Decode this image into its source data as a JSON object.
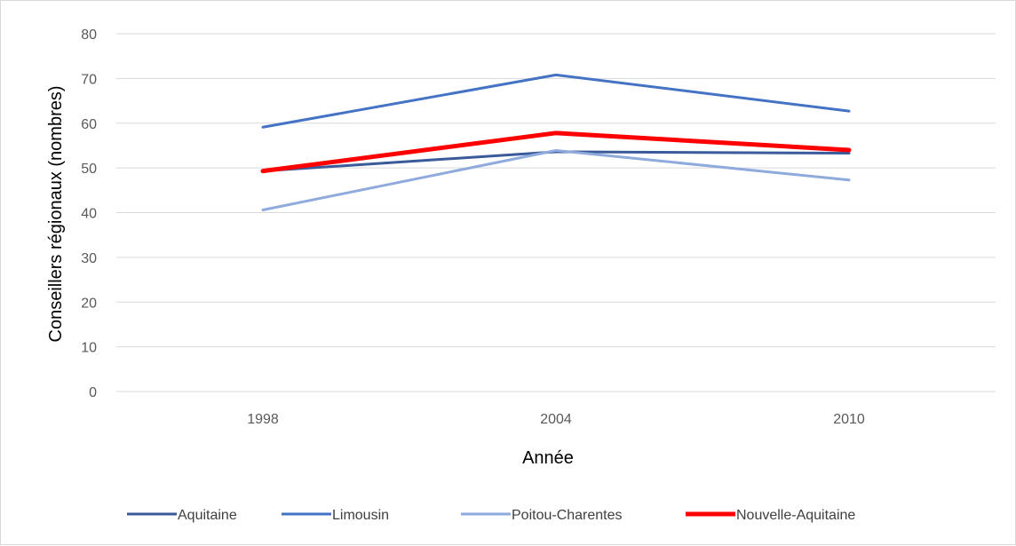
{
  "chart_data": {
    "type": "line",
    "title": "",
    "xlabel": "Année",
    "ylabel": "Conseillers régionaux (nombres)",
    "categories": [
      "1998",
      "2004",
      "2010"
    ],
    "ylim": [
      0,
      80
    ],
    "yticks": [
      0,
      10,
      20,
      30,
      40,
      50,
      60,
      70,
      80
    ],
    "grid": true,
    "legend_position": "bottom",
    "series": [
      {
        "name": "Aquitaine",
        "values": [
          49.3,
          53.6,
          53.3
        ],
        "color": "#3b5a9a"
      },
      {
        "name": "Limousin",
        "values": [
          59.1,
          70.8,
          62.7
        ],
        "color": "#4472c4"
      },
      {
        "name": "Poitou-Charentes",
        "values": [
          40.6,
          53.9,
          47.3
        ],
        "color": "#8faadc"
      },
      {
        "name": "Nouvelle-Aquitaine",
        "values": [
          49.3,
          57.8,
          54.0
        ],
        "color": "#ff0000"
      }
    ]
  }
}
